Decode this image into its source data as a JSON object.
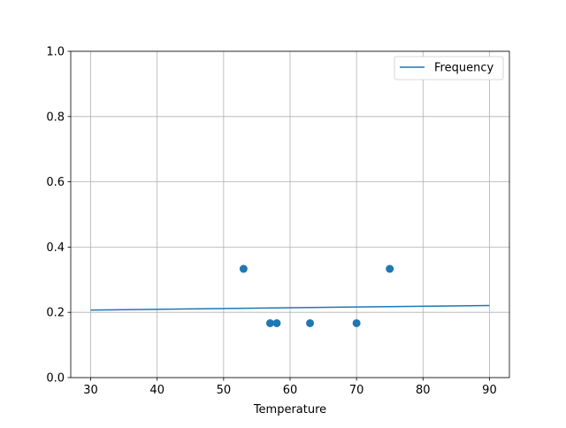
{
  "chart_data": {
    "type": "scatter",
    "title": "",
    "xlabel": "Temperature",
    "ylabel": "",
    "xlim": [
      27,
      93
    ],
    "ylim": [
      0,
      1.0
    ],
    "xticks": [
      30,
      40,
      50,
      60,
      70,
      80,
      90
    ],
    "yticks": [
      0.0,
      0.2,
      0.4,
      0.6,
      0.8,
      1.0
    ],
    "xtick_labels": [
      "30",
      "40",
      "50",
      "60",
      "70",
      "80",
      "90"
    ],
    "ytick_labels": [
      "0.0",
      "0.2",
      "0.4",
      "0.6",
      "0.8",
      "1.0"
    ],
    "grid": true,
    "legend": {
      "placement": "top-right",
      "entries": [
        "Frequency"
      ]
    },
    "series": [
      {
        "name": "Frequency",
        "kind": "line",
        "color": "#1f77b4",
        "x": [
          30,
          90
        ],
        "y": [
          0.207,
          0.221
        ]
      },
      {
        "kind": "scatter",
        "color": "#1f77b4",
        "x": [
          53,
          57,
          58,
          63,
          70,
          75
        ],
        "y": [
          0.3333,
          0.1667,
          0.1667,
          0.1667,
          0.1667,
          0.3333
        ]
      }
    ]
  }
}
